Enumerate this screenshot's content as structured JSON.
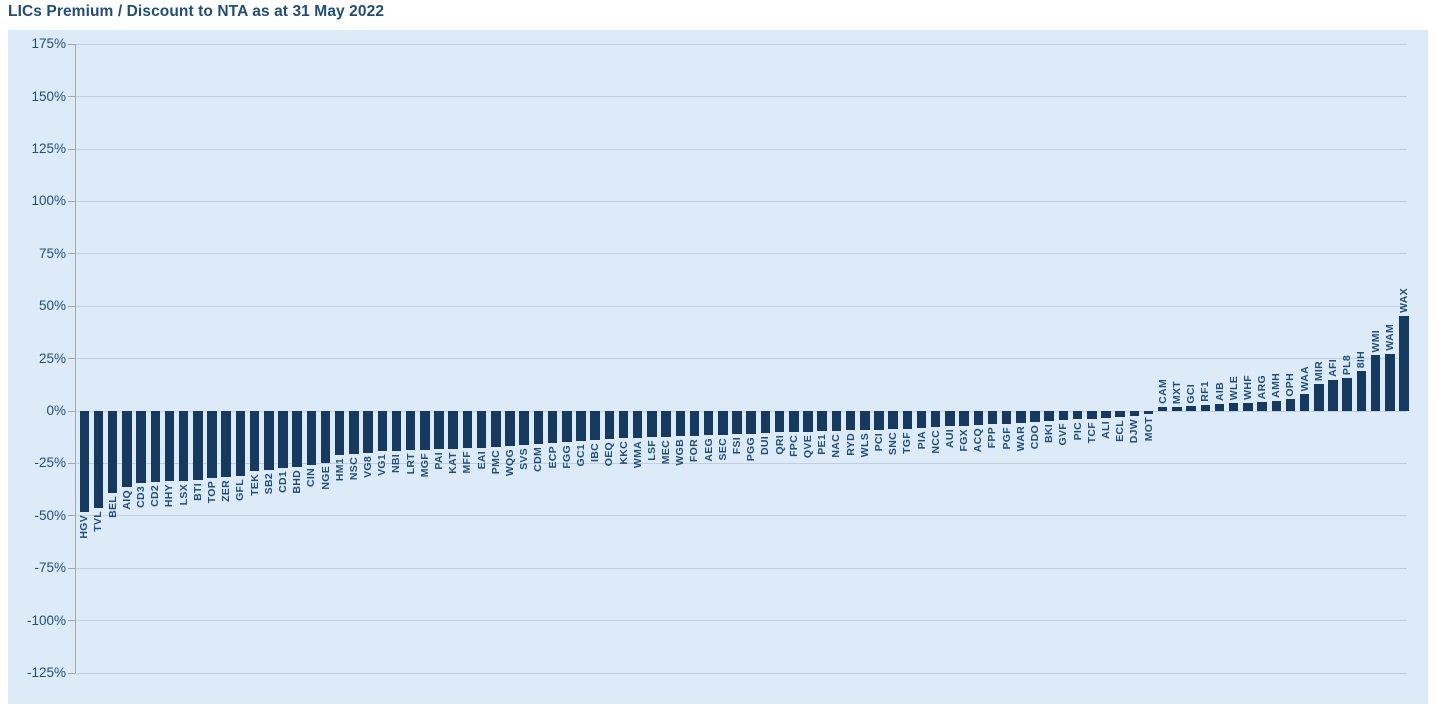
{
  "title": "LICs Premium / Discount to NTA as at 31 May 2022",
  "colors": {
    "page_background": "#ffffff",
    "panel_background": "#dcebf7",
    "bar": "#16395f",
    "bar_label_text": "#1f4e79",
    "axis_text": "#1f4e79",
    "title_text": "#1f4e79",
    "gridline": "#bfcfdd",
    "axis_line": "#a6a6a6"
  },
  "y_axis": {
    "max": 175,
    "min": -125,
    "step": 25,
    "tick_labels": [
      "175%",
      "150%",
      "125%",
      "100%",
      "75%",
      "50%",
      "25%",
      "0%",
      "-25%",
      "-50%",
      "-75%",
      "-100%",
      "-125%"
    ]
  },
  "chart_data": {
    "type": "bar",
    "title": "LICs Premium / Discount to NTA as at 31 May 2022",
    "xlabel": "",
    "ylabel": "",
    "unit": "percent",
    "ylim": [
      -125,
      175
    ],
    "ytick_step": 25,
    "grid": "horizontal",
    "legend": "none",
    "bar_label_rotation": 90,
    "categories": [
      "HGV",
      "TVL",
      "BEL",
      "AIQ",
      "CD3",
      "CD2",
      "HHY",
      "LSX",
      "BTI",
      "TOP",
      "ZER",
      "GFL",
      "TEK",
      "SB2",
      "CD1",
      "BHD",
      "CIN",
      "NGE",
      "HM1",
      "NSC",
      "VG8",
      "VG1",
      "NBI",
      "LRT",
      "MGF",
      "PAI",
      "KAT",
      "MFF",
      "EAI",
      "PMC",
      "WQG",
      "SVS",
      "CDM",
      "ECP",
      "FGG",
      "GC1",
      "IBC",
      "OEQ",
      "KKC",
      "WMA",
      "LSF",
      "MEC",
      "WGB",
      "FOR",
      "AEG",
      "SEC",
      "FSI",
      "PGG",
      "DUI",
      "QRI",
      "FPC",
      "QVE",
      "PE1",
      "NAC",
      "RYD",
      "WLS",
      "PCI",
      "SNC",
      "TGF",
      "PIA",
      "NCC",
      "AUI",
      "FGX",
      "ACQ",
      "FPP",
      "PGF",
      "WAR",
      "CDO",
      "BKI",
      "GVF",
      "PIC",
      "TCF",
      "ALI",
      "ECL",
      "DJW",
      "MOT",
      "CAM",
      "MXT",
      "GCI",
      "RF1",
      "AIB",
      "WLE",
      "WHF",
      "ARG",
      "AMH",
      "OPH",
      "WAA",
      "MIR",
      "AFI",
      "PL8",
      "8IH",
      "WMI",
      "WAM",
      "WAX"
    ],
    "values": [
      -48,
      -46.2,
      -39.3,
      -36.2,
      -34.5,
      -34,
      -33.6,
      -33.2,
      -32.7,
      -32.2,
      -31.7,
      -30.8,
      -28.5,
      -28,
      -27.4,
      -26.9,
      -25.8,
      -24.6,
      -21,
      -20.3,
      -19.8,
      -19.3,
      -18.9,
      -18.6,
      -18.4,
      -18.2,
      -18,
      -17.8,
      -17.5,
      -17,
      -16.5,
      -16,
      -15.6,
      -15.2,
      -14.8,
      -14.3,
      -13.7,
      -13.2,
      -13,
      -12.8,
      -12.4,
      -12.2,
      -12,
      -11.8,
      -11.6,
      -11.4,
      -11.2,
      -11,
      -10.4,
      -10.2,
      -10,
      -9.8,
      -9.6,
      -9.5,
      -9.3,
      -9.2,
      -9,
      -8.7,
      -8.5,
      -8.3,
      -7.6,
      -7.3,
      -7,
      -6.6,
      -6.3,
      -6,
      -5.6,
      -5.3,
      -4.8,
      -4.3,
      -4,
      -3.6,
      -3.3,
      -2.8,
      -2.3,
      -1.6,
      2,
      2.1,
      2.3,
      3,
      3.5,
      3.8,
      3.9,
      4.1,
      5,
      5.5,
      8,
      13,
      15,
      15.8,
      19,
      26.5,
      27.3,
      45.5
    ]
  }
}
